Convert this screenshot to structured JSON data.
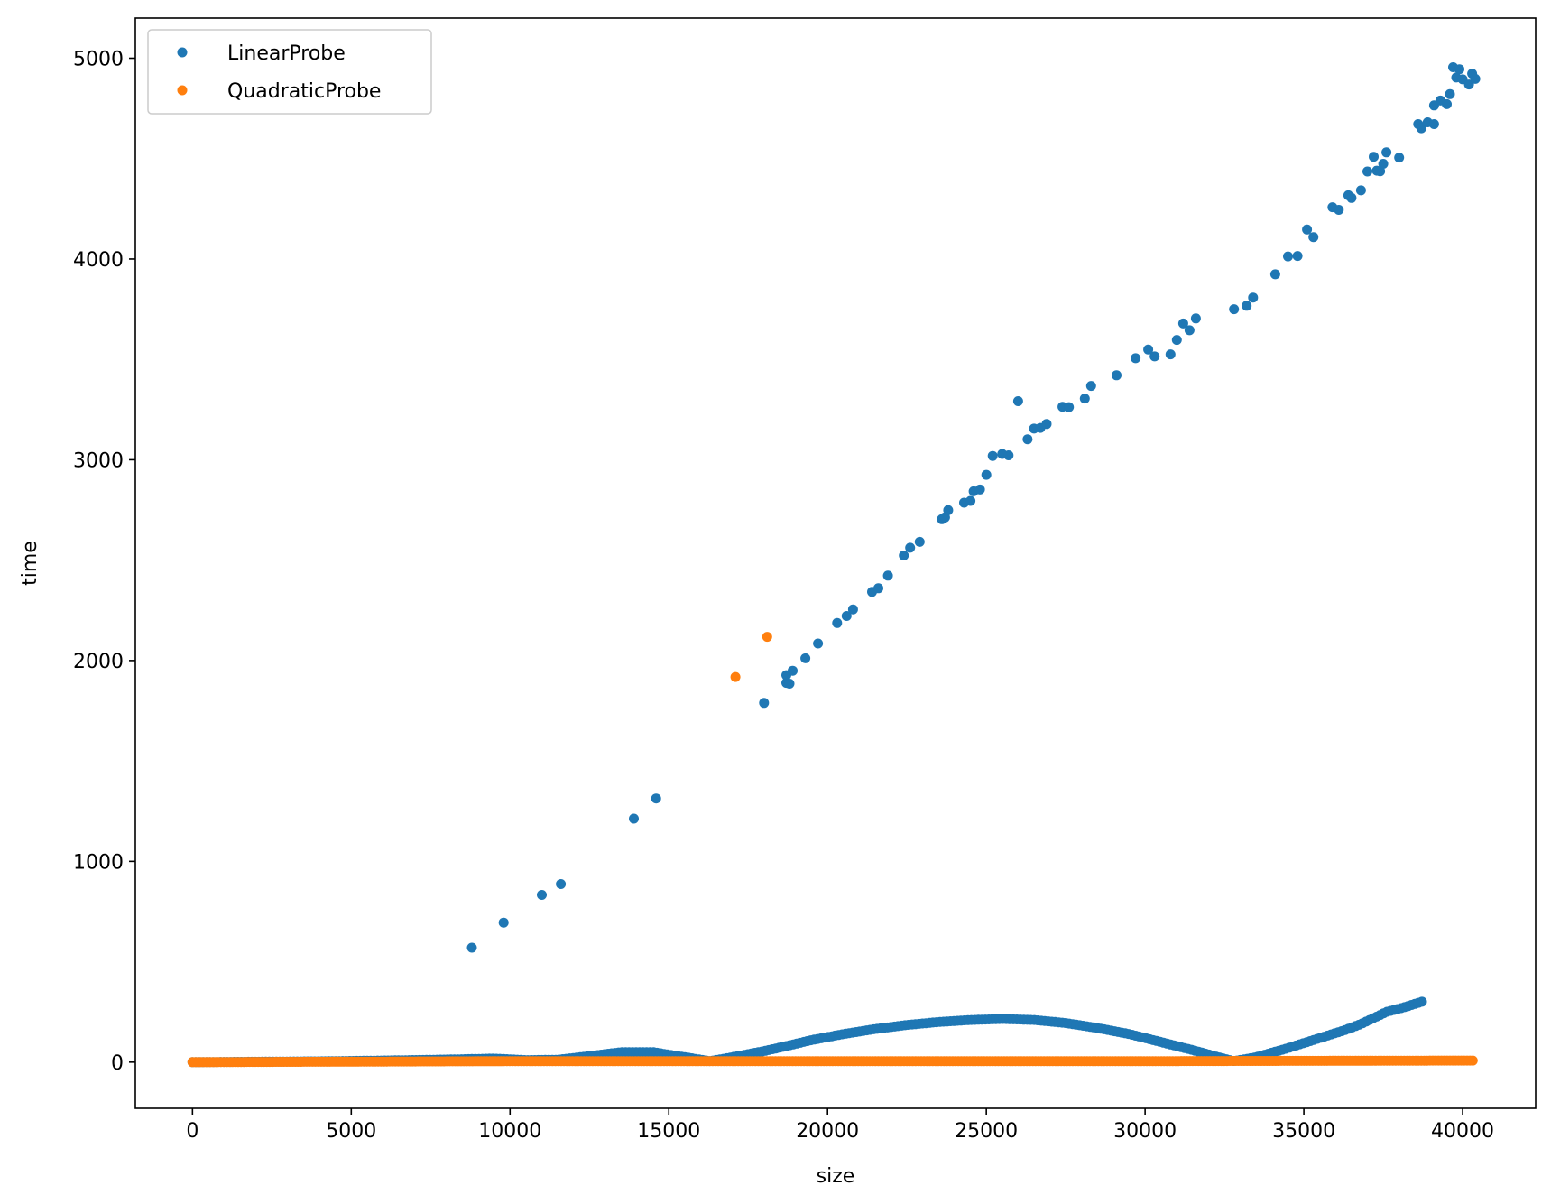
{
  "chart_data": {
    "type": "scatter",
    "title": "",
    "xlabel": "size",
    "ylabel": "time",
    "xlim": [
      -1800,
      42300
    ],
    "ylim": [
      -230,
      5200
    ],
    "xticks": [
      0,
      5000,
      10000,
      15000,
      20000,
      25000,
      30000,
      35000,
      40000
    ],
    "yticks": [
      0,
      1000,
      2000,
      3000,
      4000,
      5000
    ],
    "grid": false,
    "legend": "top-left",
    "series": [
      {
        "name": "LinearProbe",
        "color": "#1f77b4",
        "points": [
          [
            8800,
            570
          ],
          [
            9800,
            695
          ],
          [
            11000,
            833
          ],
          [
            11600,
            887
          ],
          [
            13900,
            1213
          ],
          [
            14600,
            1313
          ],
          [
            18000,
            1789
          ],
          [
            18700,
            1889
          ],
          [
            18800,
            1885
          ],
          [
            18700,
            1927
          ],
          [
            18900,
            1949
          ],
          [
            19300,
            2011
          ],
          [
            19700,
            2085
          ],
          [
            20300,
            2187
          ],
          [
            20600,
            2222
          ],
          [
            20800,
            2255
          ],
          [
            21400,
            2342
          ],
          [
            21600,
            2360
          ],
          [
            21900,
            2423
          ],
          [
            22400,
            2523
          ],
          [
            22600,
            2562
          ],
          [
            22900,
            2591
          ],
          [
            23600,
            2704
          ],
          [
            23700,
            2713
          ],
          [
            23800,
            2749
          ],
          [
            24300,
            2786
          ],
          [
            24500,
            2795
          ],
          [
            24600,
            2843
          ],
          [
            24800,
            2852
          ],
          [
            25000,
            2925
          ],
          [
            25200,
            3019
          ],
          [
            25500,
            3029
          ],
          [
            25700,
            3022
          ],
          [
            26000,
            3292
          ],
          [
            26300,
            3102
          ],
          [
            26500,
            3155
          ],
          [
            26700,
            3159
          ],
          [
            26900,
            3178
          ],
          [
            27400,
            3264
          ],
          [
            27600,
            3262
          ],
          [
            28100,
            3305
          ],
          [
            28300,
            3368
          ],
          [
            29100,
            3421
          ],
          [
            29700,
            3506
          ],
          [
            30100,
            3549
          ],
          [
            30300,
            3515
          ],
          [
            30800,
            3525
          ],
          [
            31000,
            3597
          ],
          [
            31200,
            3679
          ],
          [
            31400,
            3645
          ],
          [
            31600,
            3704
          ],
          [
            32800,
            3750
          ],
          [
            33200,
            3767
          ],
          [
            33400,
            3808
          ],
          [
            34100,
            3924
          ],
          [
            34500,
            4013
          ],
          [
            34800,
            4015
          ],
          [
            35100,
            4147
          ],
          [
            35300,
            4109
          ],
          [
            35900,
            4258
          ],
          [
            36100,
            4245
          ],
          [
            36400,
            4317
          ],
          [
            36500,
            4304
          ],
          [
            36800,
            4342
          ],
          [
            37000,
            4436
          ],
          [
            37200,
            4509
          ],
          [
            37300,
            4440
          ],
          [
            37400,
            4437
          ],
          [
            37500,
            4474
          ],
          [
            37600,
            4531
          ],
          [
            38000,
            4505
          ],
          [
            38600,
            4672
          ],
          [
            38700,
            4651
          ],
          [
            38900,
            4681
          ],
          [
            39100,
            4672
          ],
          [
            39100,
            4765
          ],
          [
            39300,
            4789
          ],
          [
            39500,
            4771
          ],
          [
            39600,
            4821
          ],
          [
            39700,
            4955
          ],
          [
            39800,
            4904
          ],
          [
            39900,
            4945
          ],
          [
            40000,
            4895
          ],
          [
            40200,
            4869
          ],
          [
            40300,
            4923
          ],
          [
            40400,
            4897
          ]
        ],
        "band": {
          "x_start": 0,
          "x_end": 38800,
          "step": 110,
          "profile": [
            [
              0,
              0
            ],
            [
              2000,
              2
            ],
            [
              4000,
              4
            ],
            [
              6000,
              8
            ],
            [
              8000,
              13
            ],
            [
              9500,
              18
            ],
            [
              10500,
              10
            ],
            [
              11500,
              12
            ],
            [
              12500,
              30
            ],
            [
              13500,
              50
            ],
            [
              14500,
              50
            ],
            [
              15500,
              25
            ],
            [
              16300,
              5
            ],
            [
              17000,
              25
            ],
            [
              18000,
              55
            ],
            [
              18700,
              80
            ],
            [
              19500,
              110
            ],
            [
              20500,
              140
            ],
            [
              21500,
              165
            ],
            [
              22500,
              185
            ],
            [
              23500,
              200
            ],
            [
              24500,
              210
            ],
            [
              25500,
              215
            ],
            [
              26500,
              210
            ],
            [
              27500,
              195
            ],
            [
              28500,
              170
            ],
            [
              29500,
              140
            ],
            [
              30500,
              100
            ],
            [
              31500,
              60
            ],
            [
              32300,
              25
            ],
            [
              32800,
              5
            ],
            [
              33500,
              25
            ],
            [
              34500,
              70
            ],
            [
              35500,
              120
            ],
            [
              36300,
              160
            ],
            [
              36800,
              190
            ],
            [
              37600,
              250
            ],
            [
              38200,
              275
            ],
            [
              38800,
              305
            ]
          ]
        }
      },
      {
        "name": "QuadraticProbe",
        "color": "#ff7f0e",
        "points": [
          [
            17100,
            1918
          ],
          [
            18100,
            2118
          ]
        ],
        "band": {
          "x_start": 0,
          "x_end": 40400,
          "step": 90,
          "profile": [
            [
              0,
              0
            ],
            [
              10000,
              5
            ],
            [
              20000,
              5
            ],
            [
              30000,
              5
            ],
            [
              40400,
              8
            ]
          ]
        }
      }
    ]
  }
}
